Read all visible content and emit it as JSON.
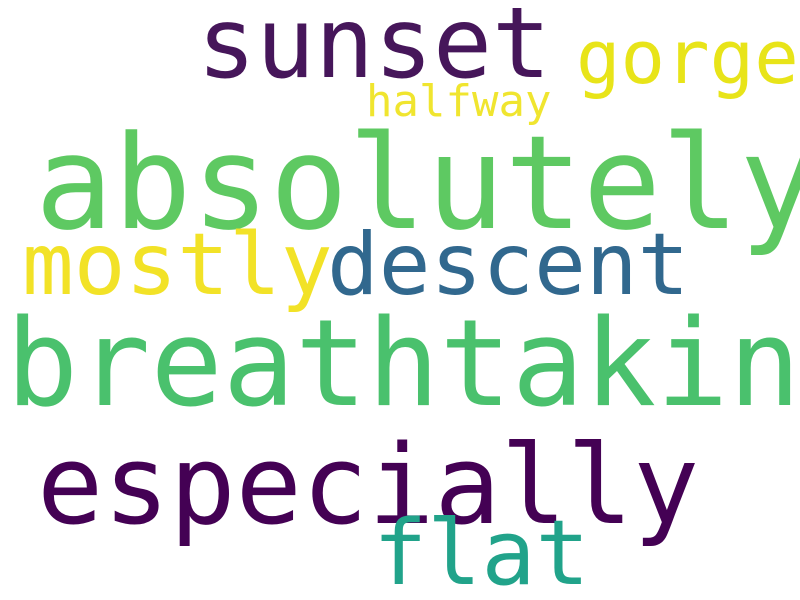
{
  "word_cloud": {
    "background": "#ffffff",
    "words": [
      {
        "text": "sunset",
        "color": "#46165a"
      },
      {
        "text": "gorge",
        "color": "#e8e419"
      },
      {
        "text": "halfway",
        "color": "#f0e52f"
      },
      {
        "text": "absolutely",
        "color": "#5ec962"
      },
      {
        "text": "mostly",
        "color": "#f2e227"
      },
      {
        "text": "descent",
        "color": "#31688e"
      },
      {
        "text": "breathtaking",
        "color": "#4ac16d"
      },
      {
        "text": "especially",
        "color": "#440154"
      },
      {
        "text": "flat",
        "color": "#21a38a"
      }
    ]
  }
}
